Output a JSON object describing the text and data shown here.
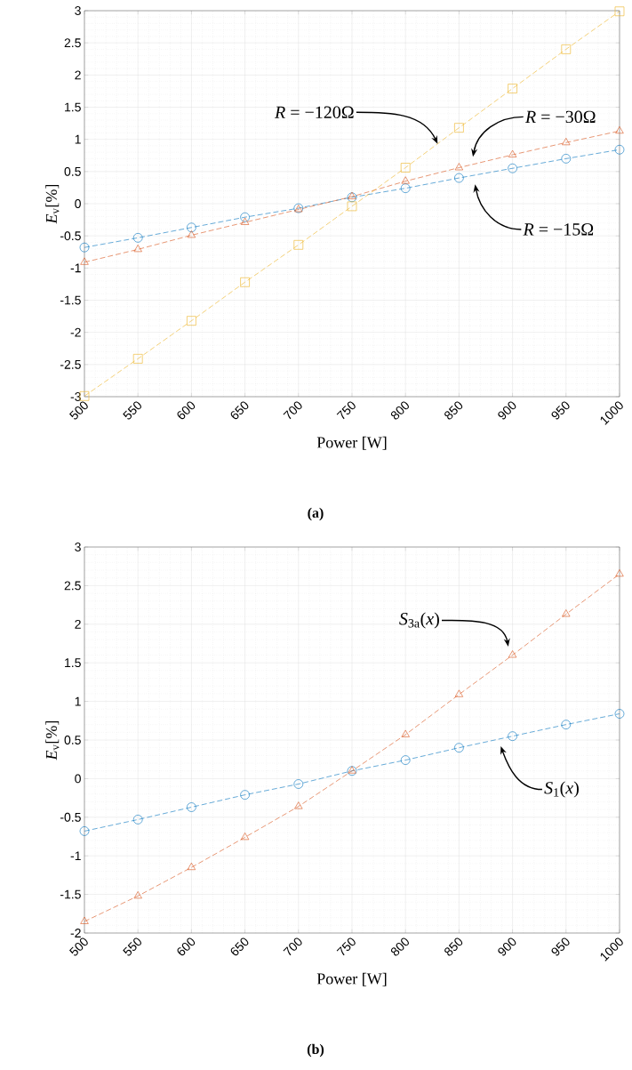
{
  "chart_data": [
    {
      "type": "line",
      "title": "(a)",
      "xlabel": "Power [W]",
      "ylabel": "*E*$_{v}$[%]",
      "x": [
        500,
        550,
        600,
        650,
        700,
        750,
        800,
        850,
        900,
        950,
        1000
      ],
      "xlim": [
        500,
        1000
      ],
      "xticks": [
        500,
        550,
        600,
        650,
        700,
        750,
        800,
        850,
        900,
        950,
        1000
      ],
      "ylim": [
        -3,
        3
      ],
      "yticks": [
        -3,
        -2.5,
        -2,
        -1.5,
        -1,
        -0.5,
        0,
        0.5,
        1,
        1.5,
        2,
        2.5,
        3
      ],
      "grid": true,
      "line_style": "dashed",
      "series": [
        {
          "color": "#0072bd",
          "marker": "circle",
          "values": [
            -0.68,
            -0.53,
            -0.37,
            -0.21,
            -0.07,
            0.1,
            0.24,
            0.4,
            0.55,
            0.7,
            0.84
          ]
        },
        {
          "color": "#d95319",
          "marker": "triangle",
          "values": [
            -0.91,
            -0.71,
            -0.49,
            -0.29,
            -0.09,
            0.11,
            0.35,
            0.56,
            0.76,
            0.95,
            1.13
          ]
        },
        {
          "color": "#edb120",
          "marker": "square",
          "values": [
            -2.99,
            -2.41,
            -1.82,
            -1.22,
            -0.64,
            -0.04,
            0.56,
            1.18,
            1.79,
            2.4,
            2.99
          ]
        }
      ],
      "annotations": [
        {
          "text": "*R* = −120Ω",
          "x": 830,
          "y": 0.93
        },
        "*R* = −30Ω",
        "*R* = −15Ω"
      ]
    },
    {
      "type": "line",
      "title": "(b)",
      "xlabel": "Power [W]",
      "ylabel": "*E*$_{v}$[%]",
      "x": [
        500,
        550,
        600,
        650,
        700,
        750,
        800,
        850,
        900,
        950,
        1000
      ],
      "xlim": [
        500,
        1000
      ],
      "xticks": [
        500,
        550,
        600,
        650,
        700,
        750,
        800,
        850,
        900,
        950,
        1000
      ],
      "ylim": [
        -2,
        3
      ],
      "yticks": [
        -2,
        -1.5,
        -1,
        -0.5,
        0,
        0.5,
        1,
        1.5,
        2,
        2.5,
        3
      ],
      "grid": true,
      "line_style": "dashed",
      "series": [
        {
          "color": "#0072bd",
          "marker": "circle",
          "values": [
            -0.68,
            -0.53,
            -0.37,
            -0.21,
            -0.07,
            0.1,
            0.24,
            0.4,
            0.55,
            0.7,
            0.84
          ]
        },
        {
          "color": "#d95319",
          "marker": "triangle",
          "values": [
            -1.85,
            -1.52,
            -1.15,
            -0.76,
            -0.36,
            0.1,
            0.57,
            1.09,
            1.6,
            2.13,
            2.65
          ]
        }
      ],
      "annotations": [
        "*S*$_{3a}$(*x*)",
        "*S*$_{1}$(*x*)"
      ]
    }
  ]
}
